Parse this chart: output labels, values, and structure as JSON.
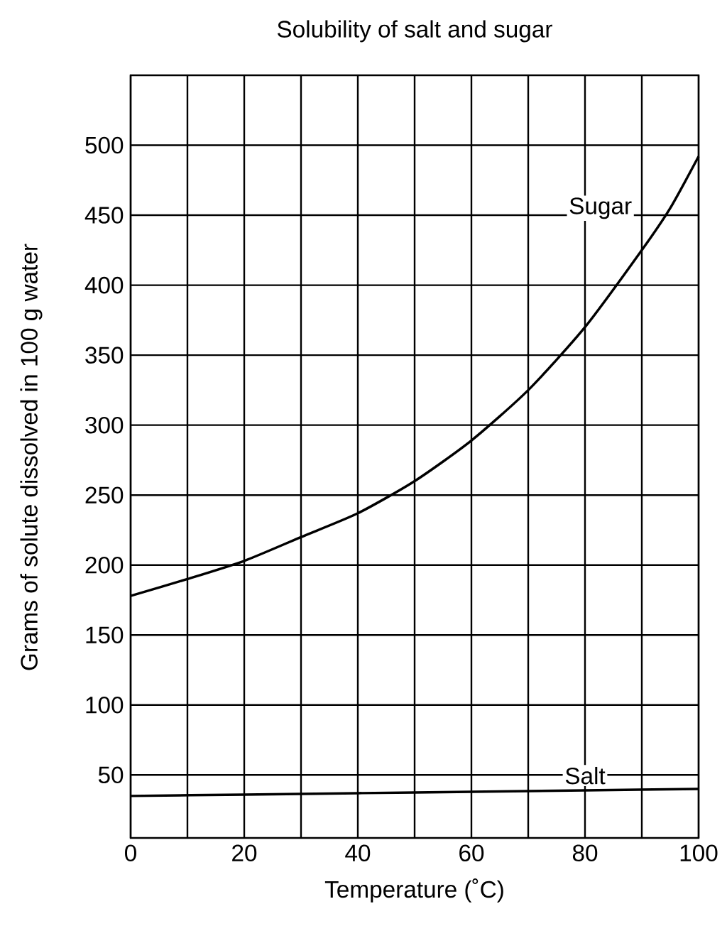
{
  "chart_data": {
    "type": "line",
    "title": "Solubility of salt and sugar",
    "xlabel": "Temperature (˚C)",
    "ylabel": "Grams of solute dissolved in 100 g water",
    "xlim": [
      0,
      100
    ],
    "ylim": [
      5,
      550
    ],
    "xticks": [
      0,
      {
        "value": 10,
        "label": null
      },
      20,
      {
        "value": 30,
        "label": null
      },
      40,
      {
        "value": 50,
        "label": null
      },
      60,
      {
        "value": 70,
        "label": null
      },
      80,
      {
        "value": 90,
        "label": null
      },
      100
    ],
    "yticks": [
      50,
      100,
      150,
      200,
      250,
      300,
      350,
      400,
      450,
      500
    ],
    "grid": true,
    "legend": false,
    "marker": "none",
    "line_style": "solid",
    "series": [
      {
        "name": "Sugar",
        "color": "#000000",
        "x": [
          0,
          10,
          20,
          30,
          40,
          50,
          60,
          70,
          80,
          90,
          95,
          100
        ],
        "values": [
          178,
          190,
          203,
          220,
          237,
          260,
          289,
          325,
          370,
          425,
          455,
          492
        ]
      },
      {
        "name": "Salt",
        "color": "#000000",
        "x": [
          0,
          20,
          40,
          60,
          80,
          100
        ],
        "values": [
          35,
          36,
          37,
          38,
          39,
          40
        ]
      }
    ]
  }
}
